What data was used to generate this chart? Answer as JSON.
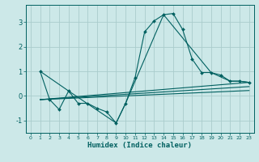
{
  "xlabel": "Humidex (Indice chaleur)",
  "bg_color": "#cce8e8",
  "grid_color": "#aacccc",
  "line_color": "#006060",
  "xlim": [
    -0.5,
    23.5
  ],
  "ylim": [
    -1.5,
    3.7
  ],
  "yticks": [
    -1,
    0,
    1,
    2,
    3
  ],
  "xticks": [
    0,
    1,
    2,
    3,
    4,
    5,
    6,
    7,
    8,
    9,
    10,
    11,
    12,
    13,
    14,
    15,
    16,
    17,
    18,
    19,
    20,
    21,
    22,
    23
  ],
  "main_x": [
    1,
    2,
    3,
    4,
    5,
    6,
    7,
    8,
    9,
    10,
    11,
    12,
    13,
    14,
    15,
    16,
    17,
    18,
    19,
    20,
    21,
    22,
    23
  ],
  "main_y": [
    1.0,
    -0.15,
    -0.55,
    0.2,
    -0.3,
    -0.3,
    -0.5,
    -0.65,
    -1.1,
    -0.3,
    0.75,
    2.6,
    3.05,
    3.3,
    3.35,
    2.7,
    1.5,
    0.95,
    0.95,
    0.85,
    0.6,
    0.6,
    0.55
  ],
  "conn_x": [
    1,
    4,
    9,
    10,
    14,
    19,
    21,
    22,
    23
  ],
  "conn_y": [
    1.0,
    0.2,
    -1.1,
    -0.3,
    3.3,
    0.95,
    0.6,
    0.6,
    0.55
  ],
  "trend1_x": [
    1,
    23
  ],
  "trend1_y": [
    -0.15,
    0.55
  ],
  "trend2_x": [
    1,
    23
  ],
  "trend2_y": [
    -0.15,
    0.38
  ],
  "trend3_x": [
    1,
    23
  ],
  "trend3_y": [
    -0.15,
    0.22
  ]
}
